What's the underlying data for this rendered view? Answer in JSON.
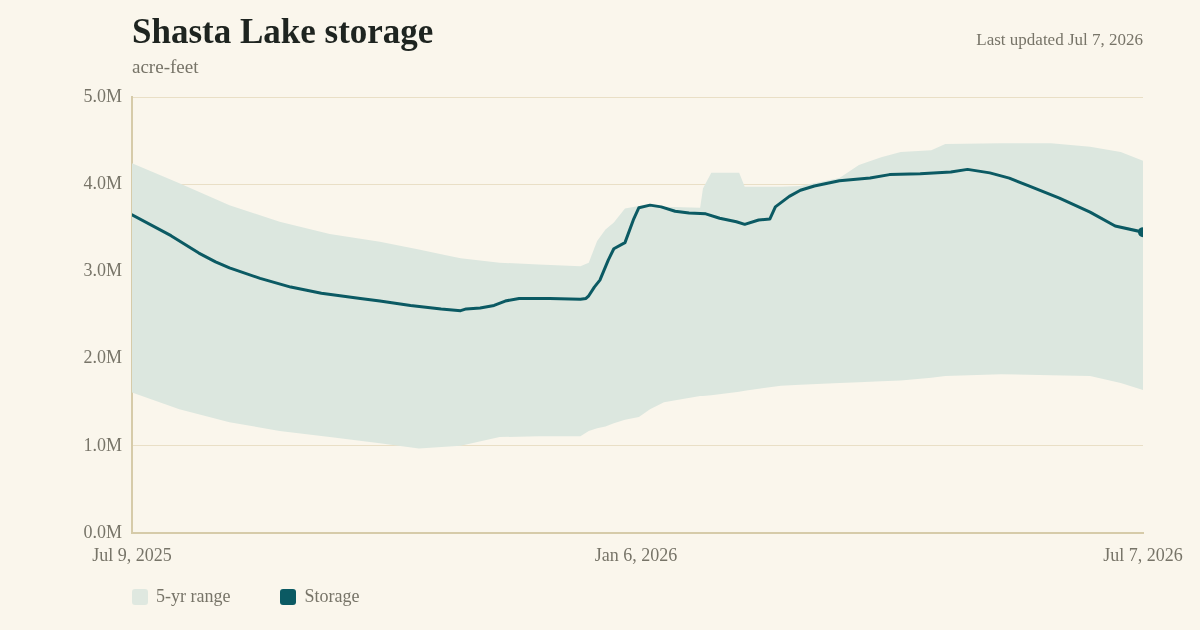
{
  "chart_data": {
    "type": "line",
    "title": "Shasta Lake storage",
    "subtitle": "acre-feet",
    "annotations": [
      "Last updated Jul 7, 2026"
    ],
    "xlim": [
      "2025-07-09",
      "2026-07-07"
    ],
    "xticks": [
      {
        "value": "2025-07-09",
        "label": "Jul 9, 2025"
      },
      {
        "value": "2026-01-06",
        "label": "Jan 6, 2026"
      },
      {
        "value": "2026-07-07",
        "label": "Jul 7, 2026"
      }
    ],
    "ylim": [
      0,
      5000000
    ],
    "yticks": [
      {
        "value": 0,
        "label": "0.0M"
      },
      {
        "value": 1000000,
        "label": "1.0M"
      },
      {
        "value": 2000000,
        "label": "2.0M"
      },
      {
        "value": 3000000,
        "label": "3.0M"
      },
      {
        "value": 4000000,
        "label": "4.0M"
      },
      {
        "value": 5000000,
        "label": "5.0M"
      }
    ],
    "grid": "y",
    "legend": "bottom",
    "series": [
      {
        "name": "5-yr range",
        "type": "area",
        "color": "#dce7df",
        "x": [
          "2025-07-09",
          "2025-07-26",
          "2025-08-13",
          "2025-08-31",
          "2025-09-18",
          "2025-10-06",
          "2025-10-20",
          "2025-11-04",
          "2025-11-18",
          "2025-12-02",
          "2025-12-17",
          "2025-12-20",
          "2025-12-23",
          "2025-12-26",
          "2025-12-29",
          "2026-01-02",
          "2026-01-07",
          "2026-01-11",
          "2026-01-16",
          "2026-01-29",
          "2026-01-30",
          "2026-02-02",
          "2026-02-12",
          "2026-02-14",
          "2026-02-27",
          "2026-03-06",
          "2026-03-20",
          "2026-03-27",
          "2026-04-04",
          "2026-04-11",
          "2026-04-22",
          "2026-04-27",
          "2026-05-17",
          "2026-06-04",
          "2026-06-18",
          "2026-06-29",
          "2026-07-07"
        ],
        "values": [
          null,
          null,
          null,
          null,
          null,
          null,
          null,
          null,
          null,
          null,
          null,
          null,
          null,
          null,
          null,
          null,
          null,
          null,
          null,
          null,
          null,
          null,
          null,
          null,
          null,
          null,
          null,
          null,
          null,
          null,
          null,
          null,
          null,
          null,
          null,
          null,
          null
        ],
        "upper": [
          4240000,
          4010000,
          3760000,
          3570000,
          3430000,
          3340000,
          3250000,
          3150000,
          3100000,
          3080000,
          3060000,
          3100000,
          3350000,
          3480000,
          3560000,
          3720000,
          3750000,
          3750000,
          3740000,
          3730000,
          3950000,
          4130000,
          4130000,
          3970000,
          3970000,
          3980000,
          4070000,
          4220000,
          4310000,
          4370000,
          4390000,
          4460000,
          4470000,
          4470000,
          4430000,
          4370000,
          4270000
        ],
        "lower": [
          1610000,
          1420000,
          1270000,
          1170000,
          1100000,
          1030000,
          970000,
          1000000,
          1100000,
          1110000,
          1110000,
          1170000,
          1200000,
          1220000,
          1260000,
          1300000,
          1330000,
          1420000,
          1500000,
          1570000,
          1570000,
          1580000,
          1620000,
          1630000,
          1690000,
          1700000,
          1720000,
          1730000,
          1740000,
          1750000,
          1780000,
          1800000,
          1820000,
          1810000,
          1800000,
          1720000,
          1640000
        ]
      },
      {
        "name": "Storage",
        "type": "line",
        "color": "#0b5a63",
        "x": [
          "2025-07-09",
          "2025-07-23",
          "2025-08-02",
          "2025-08-08",
          "2025-08-13",
          "2025-08-24",
          "2025-09-04",
          "2025-09-15",
          "2025-09-29",
          "2025-10-06",
          "2025-10-17",
          "2025-10-28",
          "2025-11-04",
          "2025-11-06",
          "2025-11-11",
          "2025-11-16",
          "2025-11-20",
          "2025-11-25",
          "2025-12-06",
          "2025-12-17",
          "2025-12-19",
          "2025-12-20",
          "2025-12-22",
          "2025-12-24",
          "2025-12-27",
          "2025-12-29",
          "2026-01-02",
          "2026-01-05",
          "2026-01-07",
          "2026-01-11",
          "2026-01-15",
          "2026-01-20",
          "2026-01-25",
          "2026-01-31",
          "2026-02-05",
          "2026-02-11",
          "2026-02-14",
          "2026-02-19",
          "2026-02-23",
          "2026-02-25",
          "2026-03-02",
          "2026-03-06",
          "2026-03-11",
          "2026-03-20",
          "2026-03-31",
          "2026-04-07",
          "2026-04-18",
          "2026-04-29",
          "2026-05-05",
          "2026-05-13",
          "2026-05-20",
          "2026-05-27",
          "2026-06-07",
          "2026-06-18",
          "2026-06-27",
          "2026-07-07"
        ],
        "values": [
          3650000,
          3410000,
          3210000,
          3110000,
          3040000,
          2920000,
          2820000,
          2750000,
          2690000,
          2660000,
          2610000,
          2570000,
          2550000,
          2570000,
          2580000,
          2610000,
          2660000,
          2690000,
          2690000,
          2680000,
          2690000,
          2720000,
          2820000,
          2900000,
          3130000,
          3260000,
          3330000,
          3590000,
          3730000,
          3760000,
          3740000,
          3690000,
          3670000,
          3660000,
          3610000,
          3570000,
          3540000,
          3590000,
          3600000,
          3740000,
          3860000,
          3930000,
          3980000,
          4040000,
          4070000,
          4110000,
          4120000,
          4140000,
          4170000,
          4130000,
          4070000,
          3980000,
          3840000,
          3680000,
          3520000,
          3450000
        ]
      }
    ]
  }
}
